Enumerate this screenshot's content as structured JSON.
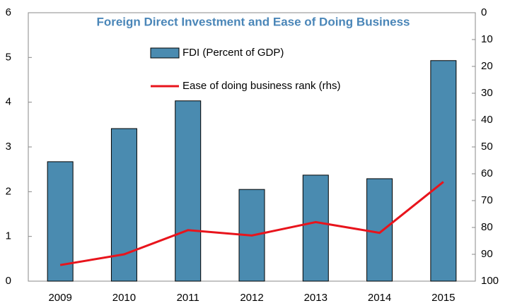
{
  "chart_data": {
    "type": "bar_line",
    "title": "Foreign Direct Investment and Ease of Doing Business",
    "categories": [
      "2009",
      "2010",
      "2011",
      "2012",
      "2013",
      "2014",
      "2015"
    ],
    "series": [
      {
        "name": "FDI (Percent of GDP)",
        "type": "bar",
        "color": "#4a8bb0",
        "values": [
          2.67,
          3.41,
          4.03,
          2.05,
          2.37,
          2.29,
          4.93
        ]
      },
      {
        "name": "Ease of doing business rank (rhs)",
        "type": "line",
        "color": "#e8141c",
        "axis": "y2",
        "values": [
          94,
          90,
          81,
          83,
          78,
          82,
          63
        ]
      }
    ],
    "ylim": [
      0,
      6
    ],
    "yticks": [
      0,
      1,
      2,
      3,
      4,
      5,
      6
    ],
    "y2lim": [
      100,
      0
    ],
    "y2ticks": [
      0,
      10,
      20,
      30,
      40,
      50,
      60,
      70,
      80,
      90,
      100
    ],
    "grid": false
  }
}
